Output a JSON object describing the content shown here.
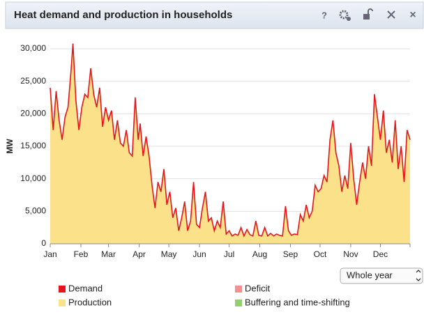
{
  "header": {
    "title": "Heat demand and production in households",
    "help": "?",
    "close": "×"
  },
  "period_select": "Whole year",
  "chart_data": {
    "type": "line",
    "ylabel": "MW",
    "x": [
      1,
      4,
      7,
      10,
      13,
      16,
      19,
      22,
      24,
      27,
      30,
      33,
      36,
      39,
      42,
      45,
      48,
      51,
      54,
      57,
      60,
      63,
      66,
      69,
      72,
      75,
      78,
      81,
      84,
      87,
      90,
      92,
      95,
      98,
      101,
      104,
      107,
      110,
      113,
      116,
      119,
      122,
      125,
      128,
      131,
      134,
      137,
      140,
      143,
      146,
      149,
      152,
      155,
      158,
      161,
      164,
      167,
      170,
      173,
      176,
      179,
      182,
      185,
      188,
      191,
      194,
      197,
      200,
      203,
      206,
      209,
      212,
      215,
      218,
      221,
      224,
      227,
      230,
      233,
      236,
      239,
      242,
      245,
      248,
      251,
      254,
      257,
      260,
      263,
      266,
      269,
      272,
      275,
      278,
      281,
      284,
      287,
      290,
      293,
      296,
      299,
      302,
      305,
      308,
      311,
      314,
      317,
      320,
      323,
      326,
      329,
      332,
      335,
      338,
      341,
      344,
      347,
      350,
      353,
      356,
      359,
      362,
      365
    ],
    "series": [
      {
        "name": "Demand",
        "color": "#e8141c",
        "style": "line",
        "values": [
          24000,
          17500,
          23500,
          19000,
          16000,
          19500,
          21000,
          26500,
          30800,
          22000,
          17500,
          21000,
          23000,
          22500,
          27000,
          23000,
          21000,
          24000,
          18000,
          21000,
          19000,
          20500,
          16000,
          19000,
          15500,
          15000,
          17500,
          14000,
          13500,
          22500,
          16000,
          18500,
          13500,
          16500,
          13500,
          9000,
          5500,
          9500,
          8000,
          11500,
          6000,
          8000,
          4000,
          5500,
          2000,
          4000,
          6500,
          2000,
          3500,
          9500,
          3000,
          2500,
          5500,
          8000,
          3500,
          4000,
          2000,
          3500,
          2500,
          6500,
          1500,
          2000,
          1200,
          1500,
          1300,
          2500,
          1200,
          2200,
          1400,
          1200,
          3500,
          1300,
          1200,
          2500,
          1200,
          1600,
          1200,
          1500,
          1300,
          1200,
          5800,
          2000,
          1300,
          1500,
          1400,
          4500,
          3500,
          6000,
          4000,
          5000,
          9000,
          8000,
          8500,
          10500,
          9500,
          16000,
          19000,
          14000,
          12000,
          8000,
          10500,
          8500,
          15500,
          10000,
          6000,
          9500,
          12500,
          10000,
          15000,
          12000,
          23000,
          19500,
          16000,
          20500,
          14000,
          16000,
          12500,
          19000,
          11500,
          15000,
          9500,
          17500,
          16000
        ]
      },
      {
        "name": "Production",
        "color": "#fbe28a",
        "style": "area",
        "values": [
          24000,
          17500,
          23500,
          19000,
          16000,
          19500,
          21000,
          26500,
          30800,
          22000,
          17500,
          21000,
          23000,
          22500,
          27000,
          23000,
          21000,
          24000,
          18000,
          21000,
          19000,
          20500,
          16000,
          19000,
          15500,
          15000,
          17500,
          14000,
          13500,
          22500,
          16000,
          18500,
          13500,
          16500,
          13500,
          9000,
          5500,
          9500,
          8000,
          11500,
          6000,
          8000,
          4000,
          5500,
          2000,
          4000,
          6500,
          2000,
          3500,
          9500,
          3000,
          2500,
          5500,
          8000,
          3500,
          4000,
          2000,
          3500,
          2500,
          6500,
          1500,
          2000,
          1200,
          1500,
          1300,
          2500,
          1200,
          2200,
          1400,
          1200,
          3500,
          1300,
          1200,
          2500,
          1200,
          1600,
          1200,
          1500,
          1300,
          1200,
          5800,
          2000,
          1300,
          1500,
          1400,
          4500,
          3500,
          6000,
          4000,
          5000,
          9000,
          8000,
          8500,
          10500,
          9500,
          16000,
          19000,
          14000,
          12000,
          8000,
          10500,
          8500,
          15500,
          10000,
          6000,
          9500,
          12500,
          10000,
          15000,
          12000,
          23000,
          19500,
          16000,
          20500,
          14000,
          16000,
          12500,
          19000,
          11500,
          15000,
          9500,
          17500,
          16000
        ]
      },
      {
        "name": "Deficit",
        "color": "#f5908f"
      },
      {
        "name": "Buffering and time-shifting",
        "color": "#93cf6f"
      }
    ],
    "xlim": [
      1,
      365
    ],
    "xticks": [
      {
        "value": 1,
        "label": "Jan"
      },
      {
        "value": 32,
        "label": "Feb"
      },
      {
        "value": 60,
        "label": "Mar"
      },
      {
        "value": 91,
        "label": "Apr"
      },
      {
        "value": 121,
        "label": "May"
      },
      {
        "value": 152,
        "label": "Jun"
      },
      {
        "value": 182,
        "label": "Jul"
      },
      {
        "value": 213,
        "label": "Aug"
      },
      {
        "value": 244,
        "label": "Sep"
      },
      {
        "value": 274,
        "label": "Oct"
      },
      {
        "value": 305,
        "label": "Nov"
      },
      {
        "value": 335,
        "label": "Dec"
      },
      {
        "value": 365,
        "label": ""
      }
    ],
    "ylim": [
      0,
      30000
    ],
    "yticks": [
      0,
      {
        "value": 5000,
        "label": "5,000"
      },
      {
        "value": 10000,
        "label": "10,000"
      },
      {
        "value": 15000,
        "label": "15,000"
      },
      {
        "value": 20000,
        "label": "20,000"
      },
      {
        "value": 25000,
        "label": "25,000"
      },
      {
        "value": 30000,
        "label": "30,000"
      }
    ],
    "grid": true
  }
}
